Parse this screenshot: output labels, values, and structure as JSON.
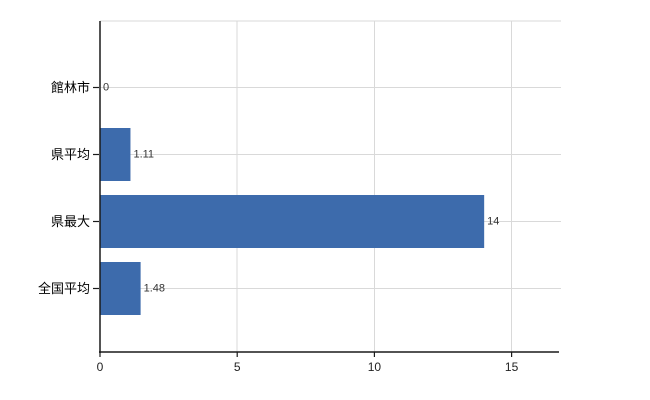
{
  "chart_data": {
    "type": "bar",
    "orientation": "horizontal",
    "title": "",
    "xlabel": "",
    "ylabel": "",
    "categories": [
      "館林市",
      "県平均",
      "県最大",
      "全国平均"
    ],
    "values": [
      0,
      1.11,
      14,
      1.48
    ],
    "value_labels": [
      "0",
      "1.11",
      "14",
      "1.48"
    ],
    "x_ticks": [
      0,
      5,
      10,
      15
    ],
    "x_tick_labels": [
      "0",
      "5",
      "10",
      "15"
    ],
    "xlim": [
      0,
      16.8
    ],
    "grid": true,
    "legend": false,
    "colors": {
      "bar": "#3d6bac",
      "grid": "#d9d9d9",
      "axis": "#1a1a1a",
      "value_label": "#333333",
      "category_label": "#000000",
      "tick_label": "#222222",
      "background": "#ffffff"
    }
  }
}
